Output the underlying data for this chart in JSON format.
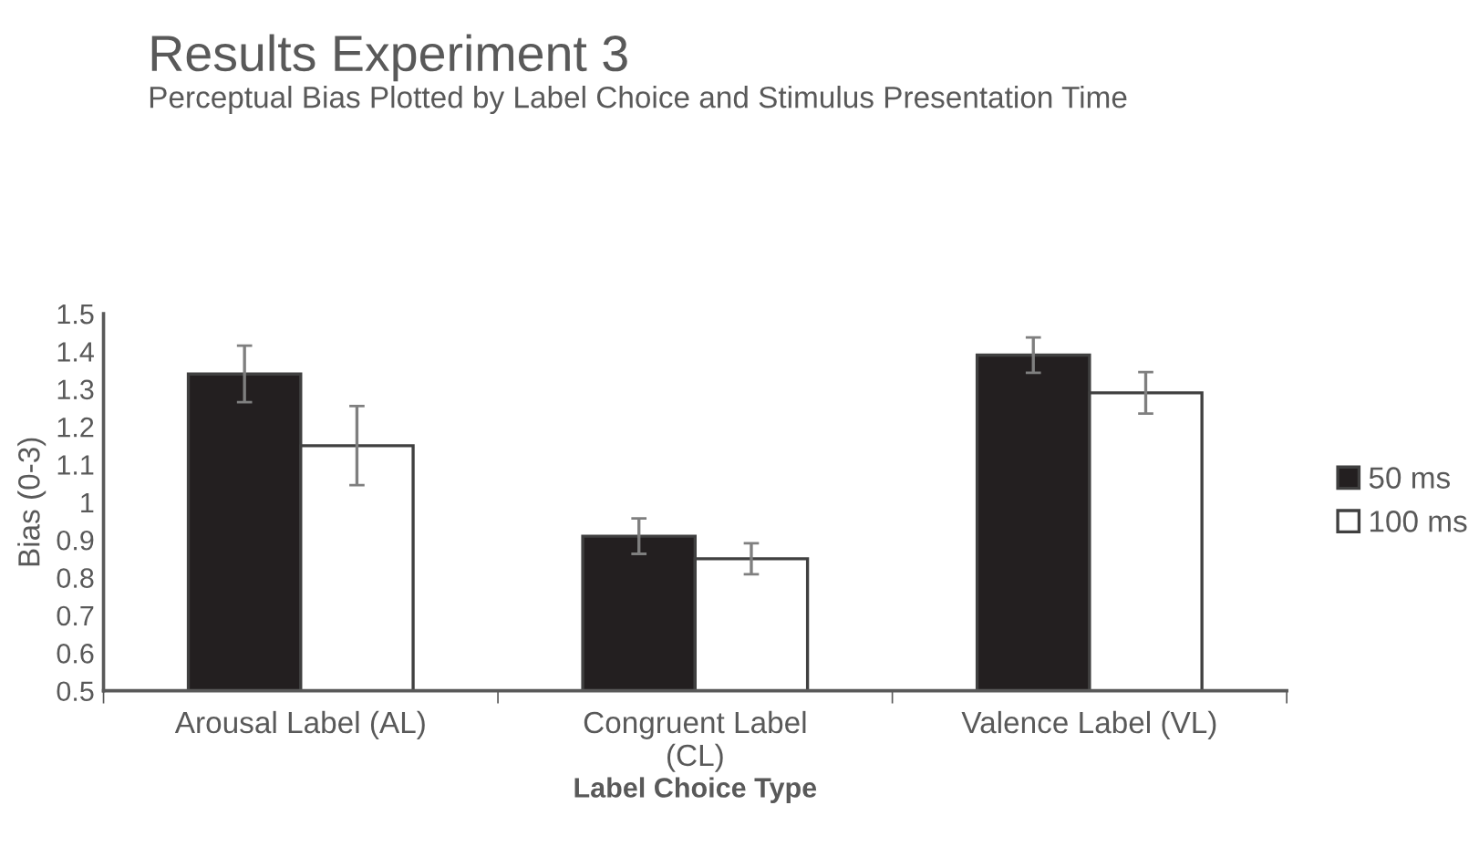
{
  "chart_data": {
    "type": "bar",
    "title": "Results Experiment 3",
    "subtitle": "Perceptual Bias Plotted by Label Choice and Stimulus Presentation Time",
    "xlabel": "Label Choice Type",
    "ylabel": "Bias (0-3)",
    "categories": [
      "Arousal Label (AL)",
      "Congruent Label\n(CL)",
      "Valence Label (VL)"
    ],
    "series": [
      {
        "name": "50 ms",
        "color": "#231f20",
        "values": [
          1.34,
          0.91,
          1.39
        ],
        "errors": [
          0.075,
          0.047,
          0.047
        ]
      },
      {
        "name": "100 ms",
        "color": "#ffffff",
        "values": [
          1.15,
          0.85,
          1.29
        ],
        "errors": [
          0.105,
          0.041,
          0.055
        ]
      }
    ],
    "ylim": [
      0.5,
      1.5
    ],
    "yticks": [
      0.5,
      0.6,
      0.7,
      0.8,
      0.9,
      1,
      1.1,
      1.2,
      1.3,
      1.4,
      1.5
    ],
    "grid": false,
    "legend": "right"
  }
}
